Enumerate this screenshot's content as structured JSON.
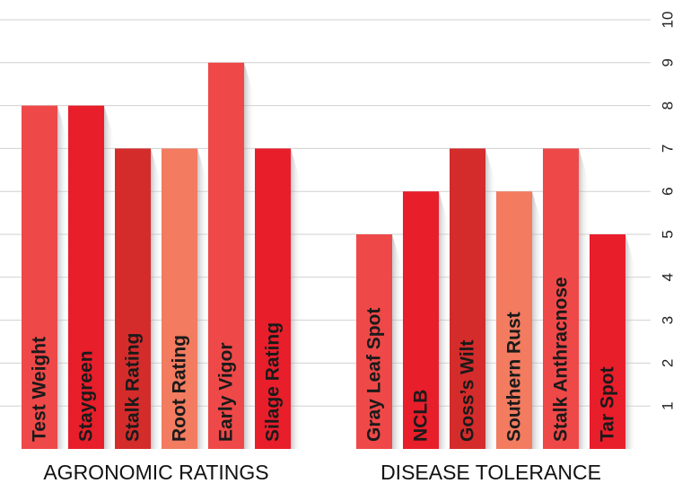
{
  "chart_data": {
    "type": "bar",
    "groups": [
      {
        "label": "AGRONOMIC RATINGS",
        "categories": [
          "Test Weight",
          "Staygreen",
          "Stalk Rating",
          "Root Rating",
          "Early Vigor",
          "Silage Rating"
        ],
        "values": [
          8,
          8,
          7,
          7,
          9,
          7
        ],
        "colors": [
          "#ef4848",
          "#e81e2b",
          "#d42b2b",
          "#f27b60",
          "#ef4848",
          "#e81e2b"
        ]
      },
      {
        "label": "DISEASE TOLERANCE",
        "categories": [
          "Gray Leaf Spot",
          "NCLB",
          "Goss’s Wilt",
          "Southern Rust",
          "Stalk Anthracnose",
          "Tar Spot"
        ],
        "values": [
          5,
          6,
          7,
          6,
          7,
          5
        ],
        "colors": [
          "#ef4848",
          "#e81e2b",
          "#d42b2b",
          "#f27b60",
          "#ef4848",
          "#e81e2b"
        ]
      }
    ],
    "ylim": [
      0,
      10
    ],
    "yticks": [
      1,
      2,
      3,
      4,
      5,
      6,
      7,
      8,
      9,
      10
    ],
    "grid": true
  }
}
